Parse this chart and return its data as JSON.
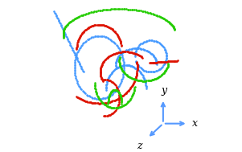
{
  "bg_color": "#ffffff",
  "axis_color": "#5599ff",
  "ribbon_colors": [
    "#dd1100",
    "#22cc00",
    "#4499ff"
  ],
  "dot_size": 3.5,
  "n_points": 400,
  "figsize": [
    3.01,
    1.89
  ],
  "dpi": 100,
  "x_label": "x",
  "y_label": "y",
  "z_label": "z"
}
